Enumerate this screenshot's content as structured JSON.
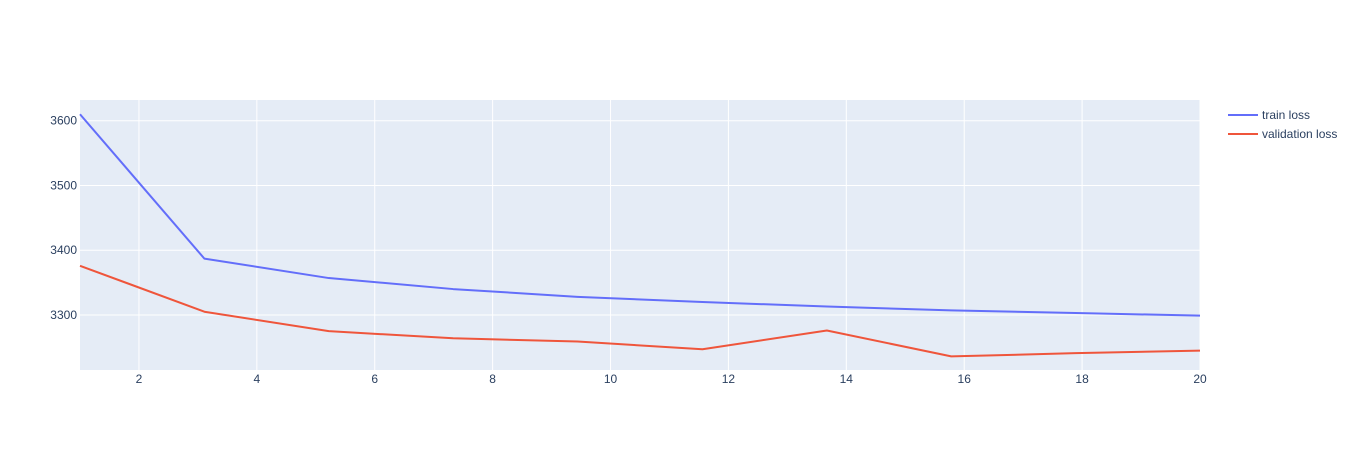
{
  "chart_data": {
    "type": "line",
    "title": "",
    "xlabel": "",
    "ylabel": "",
    "xlim": [
      1,
      20
    ],
    "ylim": [
      3215,
      3632
    ],
    "xticks": [
      2,
      4,
      6,
      8,
      10,
      12,
      14,
      16,
      18,
      20
    ],
    "yticks": [
      3300,
      3400,
      3500,
      3600
    ],
    "grid": true,
    "legend_position": "top-right",
    "plot_background": "#e5ecf6",
    "series": [
      {
        "name": "train loss",
        "color": "#636efa",
        "x": [
          1,
          3.11,
          5.22,
          7.33,
          9.44,
          11.56,
          13.67,
          15.78,
          17.89,
          20
        ],
        "values": [
          3610,
          3387,
          3357,
          3340,
          3328,
          3320,
          3313,
          3307,
          3303,
          3299
        ]
      },
      {
        "name": "validation loss",
        "color": "#ef553b",
        "x": [
          1,
          3.11,
          5.22,
          7.33,
          9.44,
          11.56,
          13.67,
          15.78,
          17.89,
          20
        ],
        "values": [
          3376,
          3305,
          3275,
          3264,
          3259,
          3247,
          3276,
          3236,
          3241,
          3245
        ]
      }
    ]
  }
}
